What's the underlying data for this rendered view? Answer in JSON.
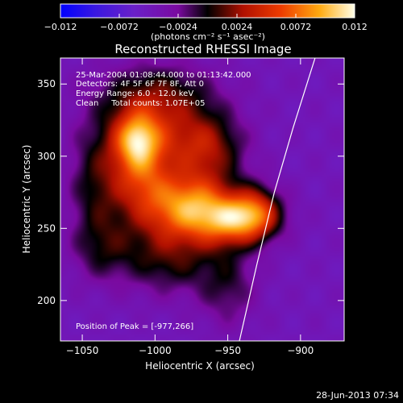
{
  "chart_data": {
    "type": "heatmap",
    "title": "Reconstructed RHESSI Image",
    "xlabel": "Heliocentric X (arcsec)",
    "ylabel": "Heliocentric Y (arcsec)",
    "xlim": [
      -1065,
      -870
    ],
    "ylim": [
      172,
      368
    ],
    "xticks": [
      -1050,
      -1000,
      -950,
      -900
    ],
    "yticks": [
      200,
      250,
      300,
      350
    ],
    "colorbar": {
      "range": [
        -0.012,
        0.012
      ],
      "ticks": [
        "-0.012",
        "-0.0072",
        "-0.0024",
        "0.0024",
        "0.0072",
        "0.012"
      ],
      "units": "(photons cm⁻² s⁻¹ asec⁻²)"
    },
    "annotations": [
      "25-Mar-2004 01:08:44.000 to 01:13:42.000",
      "Detectors: 4F 5F 6F 7F 8F, Att 0",
      "Energy Range: 6.0 - 12.0 keV",
      "Clean     Total counts: 1.07E+05"
    ],
    "peak_label": "Position of Peak = [-977,266]",
    "sources": [
      {
        "x": -977,
        "y": 266,
        "value": 0.012,
        "sx": 22,
        "sy": 16
      },
      {
        "x": -1010,
        "y": 295,
        "value": 0.0085,
        "sx": 14,
        "sy": 24
      },
      {
        "x": -1013,
        "y": 312,
        "value": 0.006,
        "sx": 10,
        "sy": 12
      },
      {
        "x": -945,
        "y": 255,
        "value": 0.0095,
        "sx": 18,
        "sy": 12
      },
      {
        "x": -930,
        "y": 262,
        "value": 0.0065,
        "sx": 12,
        "sy": 12
      },
      {
        "x": -995,
        "y": 325,
        "value": 0.005,
        "sx": 28,
        "sy": 22
      },
      {
        "x": -1040,
        "y": 280,
        "value": 0.0045,
        "sx": 14,
        "sy": 30
      },
      {
        "x": -965,
        "y": 305,
        "value": 0.006,
        "sx": 18,
        "sy": 16
      },
      {
        "x": -990,
        "y": 230,
        "value": 0.005,
        "sx": 22,
        "sy": 18
      },
      {
        "x": -950,
        "y": 210,
        "value": 0.0035,
        "sx": 14,
        "sy": 20
      },
      {
        "x": -1000,
        "y": 345,
        "value": 0.0025,
        "sx": 30,
        "sy": 14
      },
      {
        "x": -1035,
        "y": 235,
        "value": 0.003,
        "sx": 16,
        "sy": 16
      }
    ],
    "limb_curve": [
      [
        -942,
        172
      ],
      [
        -930,
        225
      ],
      [
        -918,
        275
      ],
      [
        -905,
        320
      ],
      [
        -890,
        368
      ]
    ]
  },
  "footer": {
    "timestamp": "28-Jun-2013 07:34"
  }
}
